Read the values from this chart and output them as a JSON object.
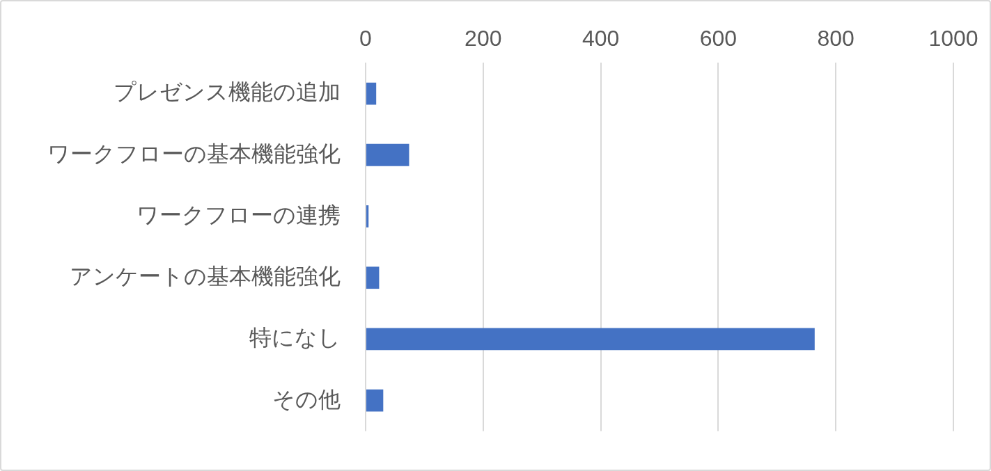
{
  "chart_data": {
    "type": "bar",
    "orientation": "horizontal",
    "categories": [
      "プレゼンス機能の追加",
      "ワークフローの基本機能強化",
      "ワークフローの連携",
      "アンケートの基本機能強化",
      "特になし",
      "その他"
    ],
    "values": [
      18,
      74,
      5,
      23,
      764,
      30
    ],
    "color": "#4472c4",
    "xlim": [
      0,
      1000
    ],
    "xticks": [
      0,
      200,
      400,
      600,
      800,
      1000
    ],
    "grid": "x",
    "legend": false
  }
}
